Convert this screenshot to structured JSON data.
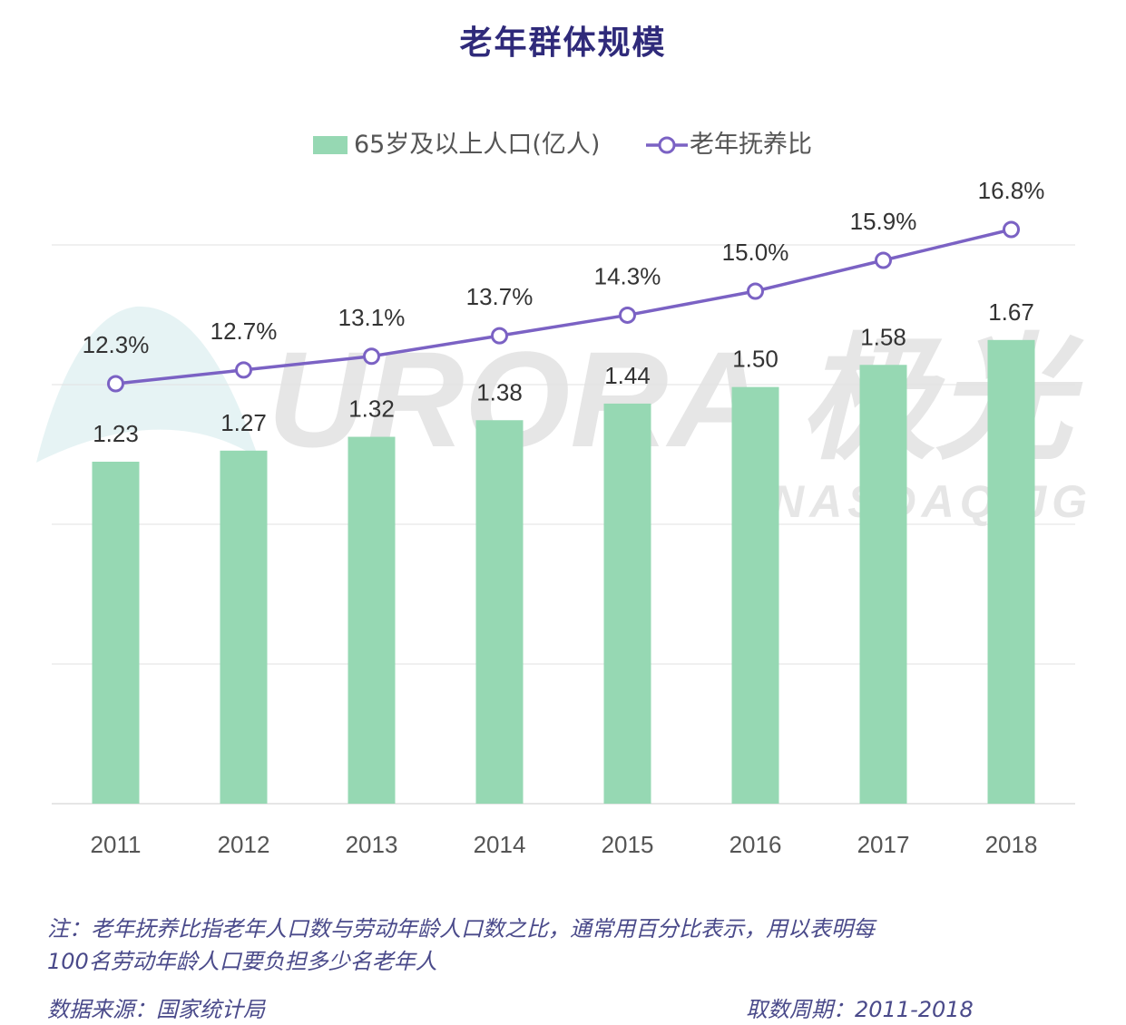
{
  "title": "老年群体规模",
  "chart_data": {
    "type": "bar+line",
    "title": "老年群体规模",
    "categories": [
      "2011",
      "2012",
      "2013",
      "2014",
      "2015",
      "2016",
      "2017",
      "2018"
    ],
    "series": [
      {
        "name": "65岁及以上人口(亿人)",
        "type": "bar",
        "values": [
          1.23,
          1.27,
          1.32,
          1.38,
          1.44,
          1.5,
          1.58,
          1.67
        ],
        "labels": [
          "1.23",
          "1.27",
          "1.32",
          "1.38",
          "1.44",
          "1.50",
          "1.58",
          "1.67"
        ],
        "color": "#96d8b3"
      },
      {
        "name": "老年抚养比",
        "type": "line",
        "values": [
          12.3,
          12.7,
          13.1,
          13.7,
          14.3,
          15.0,
          15.9,
          16.8
        ],
        "labels": [
          "12.3%",
          "12.7%",
          "13.1%",
          "13.7%",
          "14.3%",
          "15.0%",
          "15.9%",
          "16.8%"
        ],
        "color": "#7b62c4"
      }
    ],
    "legend_position": "top",
    "grid": true
  },
  "watermark": {
    "brand": "URORA 极光",
    "ticker": "NASDAQ:JG"
  },
  "footer": {
    "note_line1": "注：老年抚养比指老年人口数与劳动年龄人口数之比，通常用百分比表示，用以表明每",
    "note_line2": "100名劳动年龄人口要负担多少名老年人",
    "source": "数据来源：国家统计局",
    "period": "取数周期：2011-2018"
  }
}
